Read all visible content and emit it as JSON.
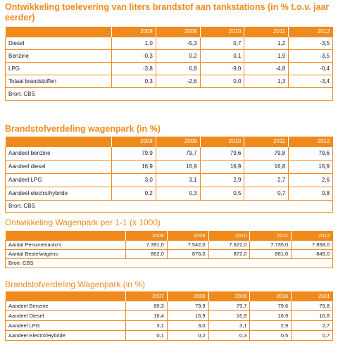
{
  "table1": {
    "title": "Ontwikkeling toelevering van liters brandstof aan tankstations (in % t.o.v. jaar eerder)",
    "headers": [
      "",
      "2008",
      "2009",
      "2010",
      "2011",
      "2012"
    ],
    "rows": [
      [
        "Diesel",
        "1,0",
        "-5,3",
        "0,7",
        "1,2",
        "-3,5"
      ],
      [
        "Benzine",
        "-0,3",
        "0,2",
        "0,1",
        "1,9",
        "-3,5"
      ],
      [
        "LPG",
        "-3,8",
        "6,8",
        "-9,0",
        "-4,8",
        "-0,4"
      ],
      [
        "Totaal brandstoffen",
        "0,3",
        "-2,6",
        "0,0",
        "1,3",
        "-3,4"
      ]
    ],
    "source": "Bron: CBS"
  },
  "table2": {
    "title": "Brandstofverdeling wagenpark (in %)",
    "headers": [
      "",
      "2008",
      "2009",
      "2010",
      "2011",
      "2012"
    ],
    "rows": [
      [
        "Aandeel benzine",
        "79,9",
        "79,7",
        "79,6",
        "79,8",
        "79,6"
      ],
      [
        "Aandeel diesel",
        "16,9",
        "16,9",
        "16,9",
        "16,8",
        "16,9"
      ],
      [
        "Aandeel LPG",
        "3,0",
        "3,1",
        "2,9",
        "2,7",
        "2,6"
      ],
      [
        "Aandeel electro/hybride",
        "0,2",
        "0,3",
        "0,5",
        "0,7",
        "0,8"
      ]
    ],
    "source": "Bron: CBS"
  },
  "table3": {
    "title": "Ontwikkeling Wagenpark per 1-1 (x 1000)",
    "headers": [
      "",
      "2008",
      "2009",
      "2010",
      "2011",
      "2012"
    ],
    "rows": [
      [
        "Aantal Personenauto's",
        "7.391,0",
        "7.542,0",
        "7.622,0",
        "7.735,0",
        "7.858,0"
      ],
      [
        "Aantal Bestelwagens",
        "862,0",
        "876,0",
        "872,0",
        "861,0",
        "849,0"
      ]
    ],
    "source": "Bron: CBS"
  },
  "table4": {
    "title": "Brandstofverdeling Wagenpark (in %)",
    "headers": [
      "",
      "2007",
      "2008",
      "2009",
      "2010",
      "2011"
    ],
    "rows": [
      [
        "Aandeel Benzine",
        "80,3",
        "79,9",
        "79,7",
        "79,6",
        "79,8"
      ],
      [
        "Aandeel Diesel",
        "16,4",
        "16,9",
        "16,9",
        "16,9",
        "16,8"
      ],
      [
        "Aandeel LPG",
        "3,1",
        "3,0",
        "3,1",
        "2,9",
        "2,7"
      ],
      [
        "Aandeel Electro/Hybride",
        "0,1",
        "0,2",
        "0,3",
        "0,5",
        "0,7"
      ]
    ],
    "source": ""
  }
}
